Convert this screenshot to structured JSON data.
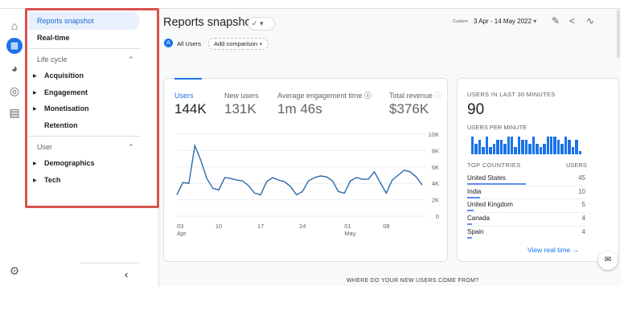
{
  "nav": {
    "items": [
      {
        "label": "Reports snapshot"
      },
      {
        "label": "Real-time"
      }
    ],
    "sections": [
      {
        "label": "Life cycle",
        "items": [
          "Acquisition",
          "Engagement",
          "Monetisation",
          "Retention"
        ]
      },
      {
        "label": "User",
        "items": [
          "Demographics",
          "Tech"
        ]
      }
    ]
  },
  "rail_icons": [
    "home-icon",
    "reports-icon",
    "explore-icon",
    "advertising-icon",
    "configure-icon"
  ],
  "header": {
    "title": "Reports snapshot",
    "segment_badge": "A",
    "segment": "All Users",
    "add_comparison": "Add comparison",
    "date_prefix": "Custom",
    "date_range": "3 Apr - 14 May 2022"
  },
  "metrics": [
    {
      "label": "Users",
      "value": "144K"
    },
    {
      "label": "New users",
      "value": "131K"
    },
    {
      "label": "Average engagement time",
      "value": "1m 46s"
    },
    {
      "label": "Total revenue",
      "value": "$376K"
    }
  ],
  "chart_data": {
    "type": "line",
    "series": [
      {
        "values": [
          2.6,
          4.1,
          4.0,
          8.6,
          6.8,
          4.6,
          3.4,
          3.2,
          4.7,
          4.6,
          4.4,
          4.3,
          3.7,
          2.8,
          2.6,
          4.2,
          4.7,
          4.4,
          4.2,
          3.6,
          2.6,
          3.0,
          4.3,
          4.7,
          4.9,
          4.8,
          4.3,
          3.0,
          2.8,
          4.3,
          4.7,
          4.5,
          4.5,
          5.4,
          4.1,
          2.8,
          4.4,
          5.0,
          5.6,
          5.4,
          4.8,
          3.8
        ]
      }
    ],
    "x_start": "3 Apr 2022",
    "x_end": "14 May 2022",
    "x_ticks": [
      {
        "day": 0,
        "label": "03",
        "sub": "Apr"
      },
      {
        "day": 7,
        "label": "10"
      },
      {
        "day": 14,
        "label": "17"
      },
      {
        "day": 21,
        "label": "24"
      },
      {
        "day": 28,
        "label": "01",
        "sub": "May"
      },
      {
        "day": 35,
        "label": "08"
      }
    ],
    "y_ticks": [
      "0",
      "2K",
      "4K",
      "6K",
      "8K",
      "10K"
    ],
    "ylim": [
      0,
      10000
    ],
    "color": "#2c6aa8"
  },
  "realtime": {
    "title": "USERS IN LAST 30 MINUTES",
    "value": "90",
    "per_minute_label": "USERS PER MINUTE",
    "per_minute": [
      5,
      3,
      4,
      2,
      5,
      2,
      3,
      4,
      4,
      3,
      5,
      5,
      2,
      5,
      4,
      4,
      3,
      5,
      3,
      2,
      3,
      5,
      5,
      5,
      4,
      3,
      5,
      4,
      2,
      4,
      1
    ],
    "countries_header": "TOP COUNTRIES",
    "users_header": "USERS",
    "countries": [
      {
        "name": "United States",
        "users": 45
      },
      {
        "name": "India",
        "users": 10
      },
      {
        "name": "United Kingdom",
        "users": 5
      },
      {
        "name": "Canada",
        "users": 4
      },
      {
        "name": "Spain",
        "users": 4
      }
    ],
    "link": "View real time"
  },
  "bottom_heading": "WHERE DO YOUR NEW USERS COME FROM?"
}
